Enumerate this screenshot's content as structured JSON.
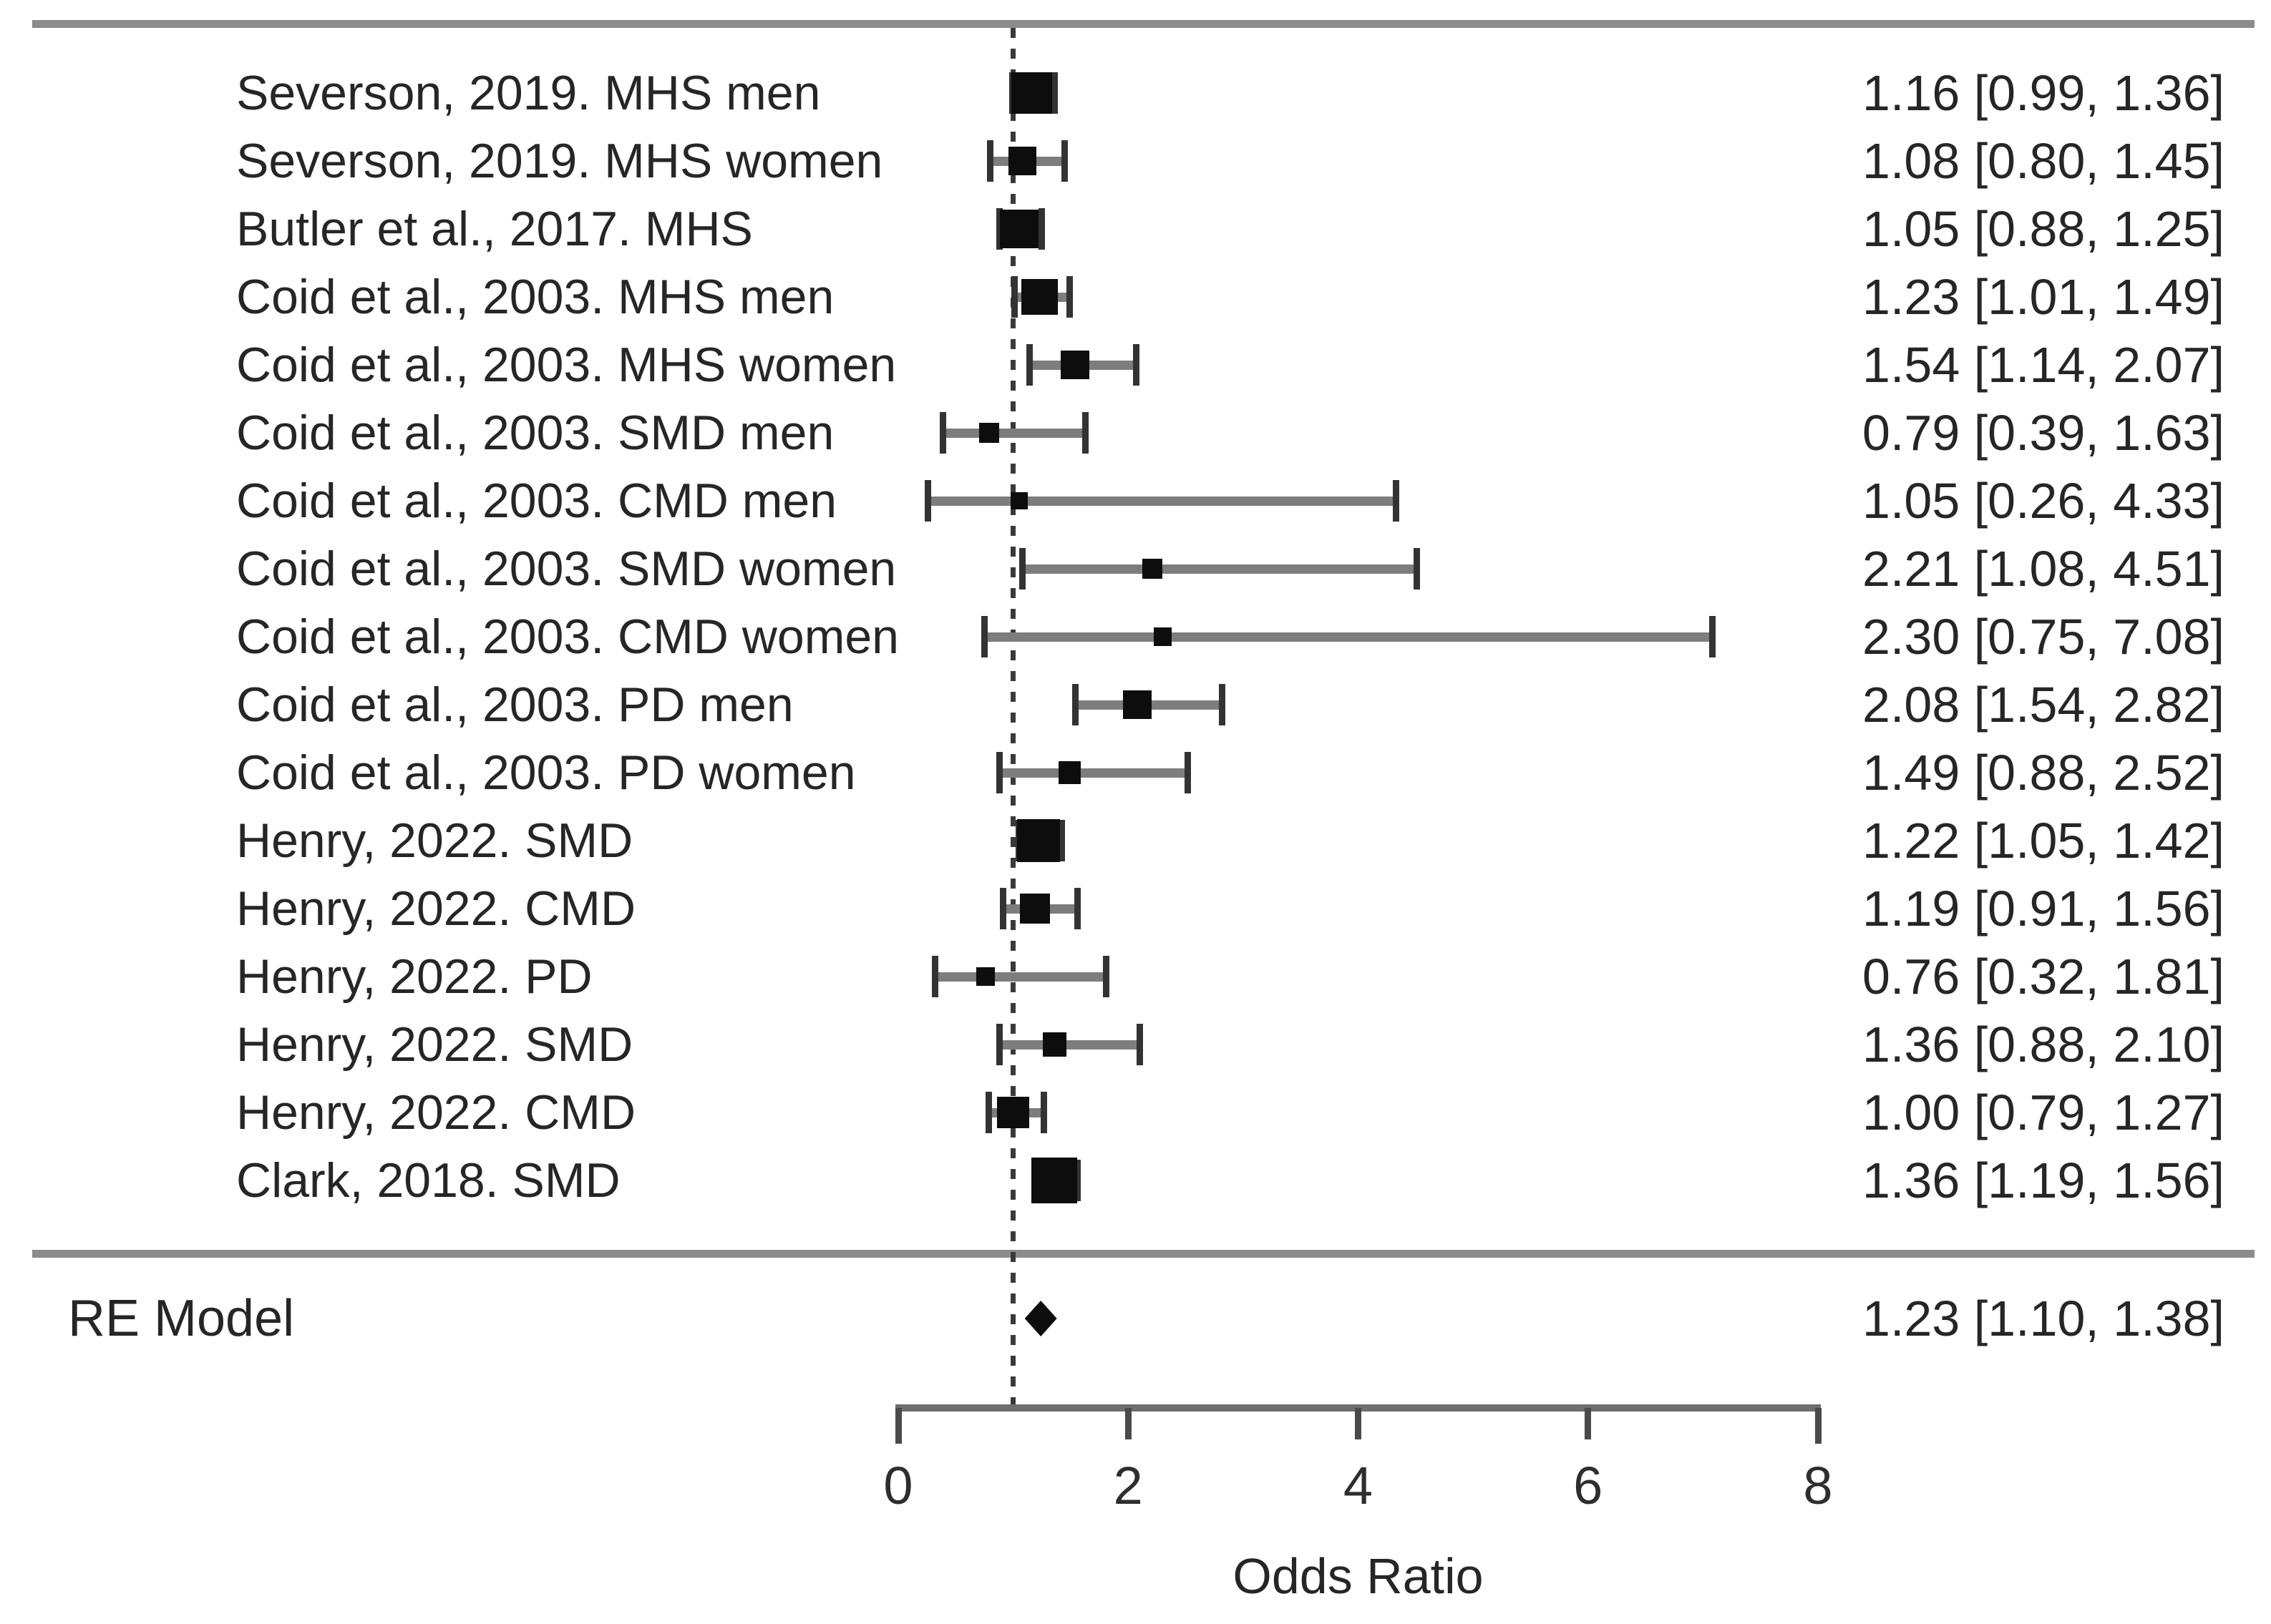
{
  "chart_data": {
    "type": "forest",
    "title": "",
    "xlabel": "Odds Ratio",
    "x_range": [
      0,
      8
    ],
    "x_ticks": [
      "0",
      "2",
      "4",
      "6",
      "8"
    ],
    "reference_line": 1.0,
    "grid": false,
    "studies": [
      {
        "label": "Severson, 2019. MHS men",
        "est": 1.16,
        "lo": 0.99,
        "hi": 1.36,
        "display": "1.16 [0.99, 1.36]"
      },
      {
        "label": "Severson, 2019. MHS women",
        "est": 1.08,
        "lo": 0.8,
        "hi": 1.45,
        "display": "1.08 [0.80, 1.45]"
      },
      {
        "label": "Butler et al., 2017. MHS",
        "est": 1.05,
        "lo": 0.88,
        "hi": 1.25,
        "display": "1.05 [0.88, 1.25]"
      },
      {
        "label": "Coid et al., 2003. MHS men",
        "est": 1.23,
        "lo": 1.01,
        "hi": 1.49,
        "display": "1.23 [1.01, 1.49]"
      },
      {
        "label": "Coid et al., 2003. MHS women",
        "est": 1.54,
        "lo": 1.14,
        "hi": 2.07,
        "display": "1.54 [1.14, 2.07]"
      },
      {
        "label": "Coid et al., 2003. SMD men",
        "est": 0.79,
        "lo": 0.39,
        "hi": 1.63,
        "display": "0.79 [0.39, 1.63]"
      },
      {
        "label": "Coid et al., 2003. CMD men",
        "est": 1.05,
        "lo": 0.26,
        "hi": 4.33,
        "display": "1.05 [0.26, 4.33]"
      },
      {
        "label": "Coid et al., 2003. SMD women",
        "est": 2.21,
        "lo": 1.08,
        "hi": 4.51,
        "display": "2.21 [1.08, 4.51]"
      },
      {
        "label": "Coid et al., 2003. CMD women",
        "est": 2.3,
        "lo": 0.75,
        "hi": 7.08,
        "display": "2.30 [0.75, 7.08]"
      },
      {
        "label": "Coid et al., 2003. PD men",
        "est": 2.08,
        "lo": 1.54,
        "hi": 2.82,
        "display": "2.08 [1.54, 2.82]"
      },
      {
        "label": "Coid et al., 2003. PD women",
        "est": 1.49,
        "lo": 0.88,
        "hi": 2.52,
        "display": "1.49 [0.88, 2.52]"
      },
      {
        "label": "Henry, 2022. SMD",
        "est": 1.22,
        "lo": 1.05,
        "hi": 1.42,
        "display": "1.22 [1.05, 1.42]"
      },
      {
        "label": "Henry, 2022. CMD",
        "est": 1.19,
        "lo": 0.91,
        "hi": 1.56,
        "display": "1.19 [0.91, 1.56]"
      },
      {
        "label": "Henry, 2022. PD",
        "est": 0.76,
        "lo": 0.32,
        "hi": 1.81,
        "display": "0.76 [0.32, 1.81]"
      },
      {
        "label": "Henry, 2022. SMD",
        "est": 1.36,
        "lo": 0.88,
        "hi": 2.1,
        "display": "1.36 [0.88, 2.10]"
      },
      {
        "label": "Henry, 2022. CMD",
        "est": 1.0,
        "lo": 0.79,
        "hi": 1.27,
        "display": "1.00 [0.79, 1.27]"
      },
      {
        "label": "Clark, 2018. SMD",
        "est": 1.36,
        "lo": 1.19,
        "hi": 1.56,
        "display": "1.36 [1.19, 1.56]"
      }
    ],
    "summary": {
      "label": "RE Model",
      "est": 1.23,
      "lo": 1.1,
      "hi": 1.38,
      "display": "1.23 [1.10, 1.38]"
    }
  },
  "colors": {
    "marker": "#0d0d0d",
    "ci_line": "#7d7d7d",
    "ci_cap": "#333333",
    "rule": "#8c8c8c",
    "axis": "#6e6e6e",
    "reference_line": "#3a3a3a",
    "text": "#262626",
    "background": "#ffffff"
  }
}
